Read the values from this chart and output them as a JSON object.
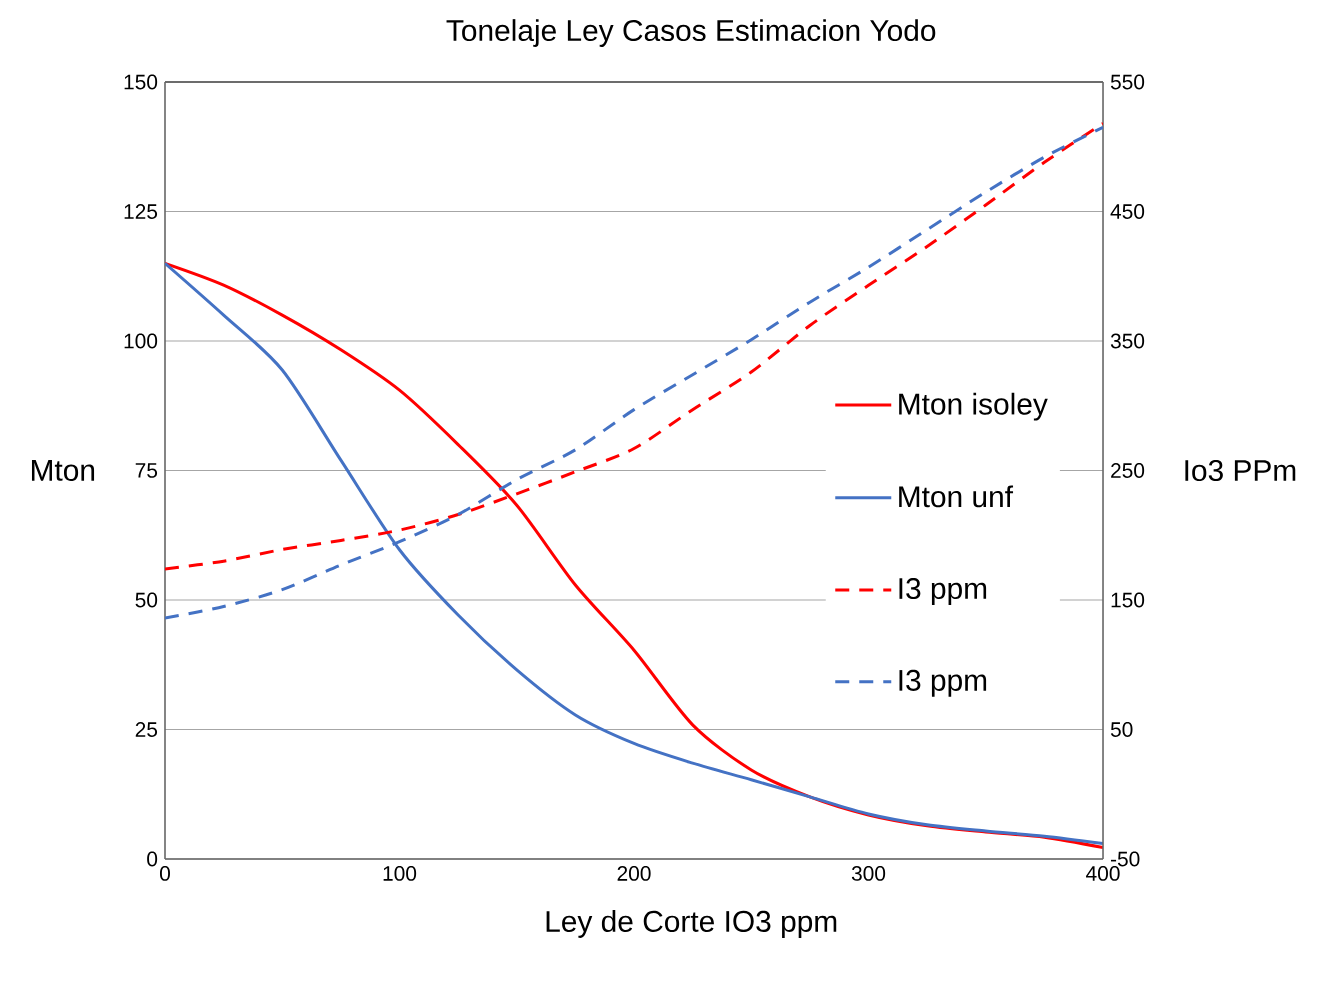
{
  "chart_data": {
    "type": "line",
    "title": "Tonelaje Ley Casos Estimacion Yodo",
    "xlabel": "Ley de Corte IO3 ppm",
    "ylabel": "Mton",
    "y2label": "Io3 PPm",
    "x": [
      0,
      25,
      50,
      75,
      100,
      125,
      150,
      175,
      200,
      225,
      250,
      275,
      300,
      325,
      350,
      375,
      400
    ],
    "series": [
      {
        "name": "Mton isoley",
        "color": "#ff0000",
        "line_style": "solid",
        "values": [
          115,
          110.8,
          105,
          98.3,
          90.5,
          80,
          68.3,
          52.9,
          40.3,
          25.9,
          17.2,
          12,
          8.5,
          6.4,
          5.2,
          4.2,
          2.2
        ]
      },
      {
        "name": "Mton unf",
        "color": "#4472c4",
        "line_style": "solid",
        "values": [
          115,
          105,
          94.4,
          77,
          59.7,
          47.1,
          36.5,
          27.8,
          22.3,
          18.5,
          15.3,
          12,
          8.7,
          6.6,
          5.4,
          4.4,
          3
        ]
      },
      {
        "name": "I3 ppm",
        "color": "#ff0000",
        "line_style": "dashed",
        "axis": "y2",
        "values": [
          174,
          180,
          189,
          196,
          204,
          216,
          232,
          249,
          267,
          297,
          326,
          362,
          393,
          423,
          455,
          488,
          518
        ]
      },
      {
        "name": "I3 ppm",
        "color": "#4472c4",
        "line_style": "dashed",
        "axis": "y2",
        "values": [
          136,
          145,
          158,
          177,
          195,
          216,
          243,
          266,
          297,
          324,
          351,
          380,
          407,
          436,
          465,
          492,
          515
        ]
      }
    ],
    "xlim": [
      0,
      400
    ],
    "xticks": [
      0,
      100,
      200,
      300,
      400
    ],
    "ylim": [
      0,
      150
    ],
    "yticks": [
      0,
      25,
      50,
      75,
      100,
      125,
      150
    ],
    "y2lim": [
      -50,
      550
    ],
    "y2ticks": [
      -50,
      50,
      150,
      250,
      350,
      450,
      550
    ],
    "grid": "y",
    "legend": "right"
  }
}
